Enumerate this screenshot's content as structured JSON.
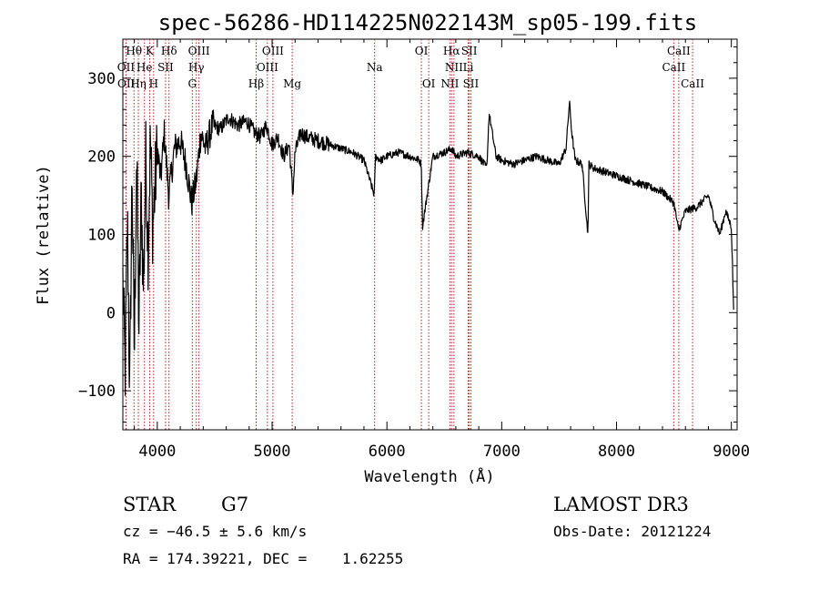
{
  "chart_data": {
    "type": "line",
    "title": "spec-56286-HD114225N022143M_sp05-199.fits",
    "xlabel": "Wavelength (Å)",
    "ylabel": "Flux (relative)",
    "xlim": [
      3700,
      9050
    ],
    "ylim": [
      -150,
      350
    ],
    "xticks": [
      4000,
      5000,
      6000,
      7000,
      8000,
      9000
    ],
    "yticks": [
      -100,
      0,
      100,
      200,
      300
    ],
    "grid": false,
    "line_color": "#000000",
    "marker_color": "#b22222",
    "series": [
      {
        "x": [
          3700,
          3720,
          3740,
          3760,
          3780,
          3800,
          3820,
          3840,
          3860,
          3880,
          3900,
          3920,
          3940,
          3960,
          3980,
          4000,
          4030,
          4060,
          4100,
          4150,
          4200,
          4250,
          4300,
          4340,
          4380,
          4420,
          4480,
          4550,
          4620,
          4700,
          4780,
          4850,
          4900,
          4950,
          5000,
          5050,
          5100,
          5150,
          5180,
          5200,
          5250,
          5300,
          5400,
          5500,
          5600,
          5700,
          5800,
          5890,
          5900,
          5950,
          6000,
          6100,
          6200,
          6280,
          6300,
          6310,
          6400,
          6500,
          6563,
          6600,
          6700,
          6800,
          6870,
          6890,
          6950,
          7000,
          7100,
          7200,
          7300,
          7400,
          7500,
          7560,
          7590,
          7610,
          7640,
          7700,
          7750,
          7760,
          7800,
          7900,
          8000,
          8100,
          8200,
          8300,
          8400,
          8500,
          8540,
          8600,
          8700,
          8800,
          8850,
          8900,
          8950,
          9000,
          9010,
          9020
        ],
        "y": [
          40,
          -80,
          120,
          -110,
          180,
          -60,
          210,
          -20,
          150,
          30,
          200,
          80,
          220,
          110,
          160,
          210,
          170,
          230,
          150,
          210,
          220,
          190,
          140,
          170,
          230,
          210,
          240,
          235,
          250,
          240,
          245,
          230,
          225,
          240,
          215,
          225,
          200,
          215,
          150,
          205,
          230,
          225,
          220,
          215,
          210,
          205,
          195,
          150,
          200,
          195,
          200,
          205,
          200,
          195,
          190,
          110,
          200,
          205,
          210,
          200,
          205,
          200,
          185,
          255,
          200,
          195,
          190,
          195,
          200,
          195,
          190,
          210,
          270,
          230,
          195,
          190,
          100,
          190,
          185,
          180,
          175,
          170,
          165,
          160,
          155,
          140,
          105,
          130,
          135,
          150,
          120,
          100,
          130,
          110,
          60,
          0
        ]
      }
    ],
    "spectral_lines": [
      {
        "label": "Hθ",
        "x": 3797,
        "row": 0
      },
      {
        "label": "K",
        "x": 3934,
        "row": 0
      },
      {
        "label": "Hδ",
        "x": 4102,
        "row": 0
      },
      {
        "label": "OIII",
        "x": 4363,
        "row": 0
      },
      {
        "label": "OIII",
        "x": 5007,
        "row": 0
      },
      {
        "label": "OI",
        "x": 6300,
        "row": 0
      },
      {
        "label": "Hα",
        "x": 6563,
        "row": 0
      },
      {
        "label": "SII",
        "x": 6717,
        "row": 0
      },
      {
        "label": "CaII",
        "x": 8542,
        "row": 0
      },
      {
        "label": "OII",
        "x": 3727,
        "row": 1
      },
      {
        "label": "He",
        "x": 3888,
        "row": 1
      },
      {
        "label": "SII",
        "x": 4072,
        "row": 1
      },
      {
        "label": "Hγ",
        "x": 4340,
        "row": 1
      },
      {
        "label": "OIII",
        "x": 4959,
        "row": 1
      },
      {
        "label": "Na",
        "x": 5893,
        "row": 1
      },
      {
        "label": "NII",
        "x": 6584,
        "row": 1
      },
      {
        "label": "Li",
        "x": 6708,
        "row": 1
      },
      {
        "label": "CaII",
        "x": 8498,
        "row": 1
      },
      {
        "label": "OII",
        "x": 3729,
        "row": 2
      },
      {
        "label": "Hη",
        "x": 3835,
        "row": 2
      },
      {
        "label": "H",
        "x": 3968,
        "row": 2
      },
      {
        "label": "G",
        "x": 4305,
        "row": 2
      },
      {
        "label": "Hβ",
        "x": 4861,
        "row": 2
      },
      {
        "label": "Mg",
        "x": 5175,
        "row": 2
      },
      {
        "label": "OI",
        "x": 6364,
        "row": 2
      },
      {
        "label": "NII",
        "x": 6548,
        "row": 2
      },
      {
        "label": "SII",
        "x": 6731,
        "row": 2
      },
      {
        "label": "CaII",
        "x": 8662,
        "row": 2
      }
    ]
  },
  "info": {
    "object_type": "STAR",
    "subclass": "G7",
    "survey": "LAMOST DR3",
    "cz": "cz = −46.5 ± 5.6 km/s",
    "obs_date": "Obs-Date: 20121224",
    "coords": "RA = 174.39221, DEC =    1.62255"
  }
}
